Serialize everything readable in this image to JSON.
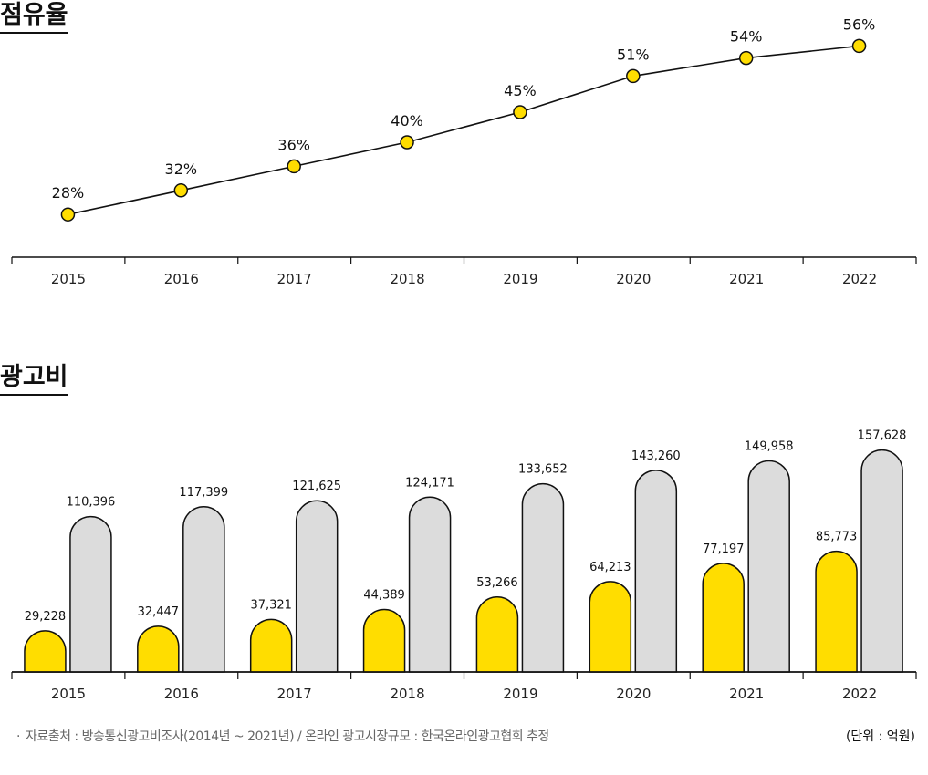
{
  "titles": {
    "share": "점유율",
    "adspend": "광고비"
  },
  "footnote": {
    "bullet": "·",
    "text": "자료출처 : 방송통신광고비조사(2014년 ~ 2021년) / 온라인 광고시장규모 : 한국온라인광고협회 추정"
  },
  "unit": "(단위 : 억원)",
  "colors": {
    "accent": "#FFDD00",
    "gray_bar": "#DCDCDC",
    "line": "#111111"
  },
  "chart_data": [
    {
      "type": "line",
      "title": "점유율",
      "x": [
        "2015",
        "2016",
        "2017",
        "2018",
        "2019",
        "2020",
        "2021",
        "2022"
      ],
      "values": [
        28,
        32,
        36,
        40,
        45,
        51,
        54,
        56
      ],
      "labels": [
        "28%",
        "32%",
        "36%",
        "40%",
        "45%",
        "51%",
        "54%",
        "56%"
      ],
      "ylim": [
        20,
        60
      ],
      "grid": false
    },
    {
      "type": "bar",
      "title": "광고비",
      "categories": [
        "2015",
        "2016",
        "2017",
        "2018",
        "2019",
        "2020",
        "2021",
        "2022"
      ],
      "series": [
        {
          "values": [
            29228,
            32447,
            37321,
            44389,
            53266,
            64213,
            77197,
            85773
          ],
          "labels": [
            "29,228",
            "32,447",
            "37,321",
            "44,389",
            "53,266",
            "64,213",
            "77,197",
            "85,773"
          ]
        },
        {
          "values": [
            110396,
            117399,
            121625,
            124171,
            133652,
            143260,
            149958,
            157628
          ],
          "labels": [
            "110,396",
            "117,399",
            "121,625",
            "124,171",
            "133,652",
            "143,260",
            "149,958",
            "157,628"
          ]
        }
      ],
      "ylim": [
        0,
        160000
      ],
      "grid": false
    }
  ]
}
